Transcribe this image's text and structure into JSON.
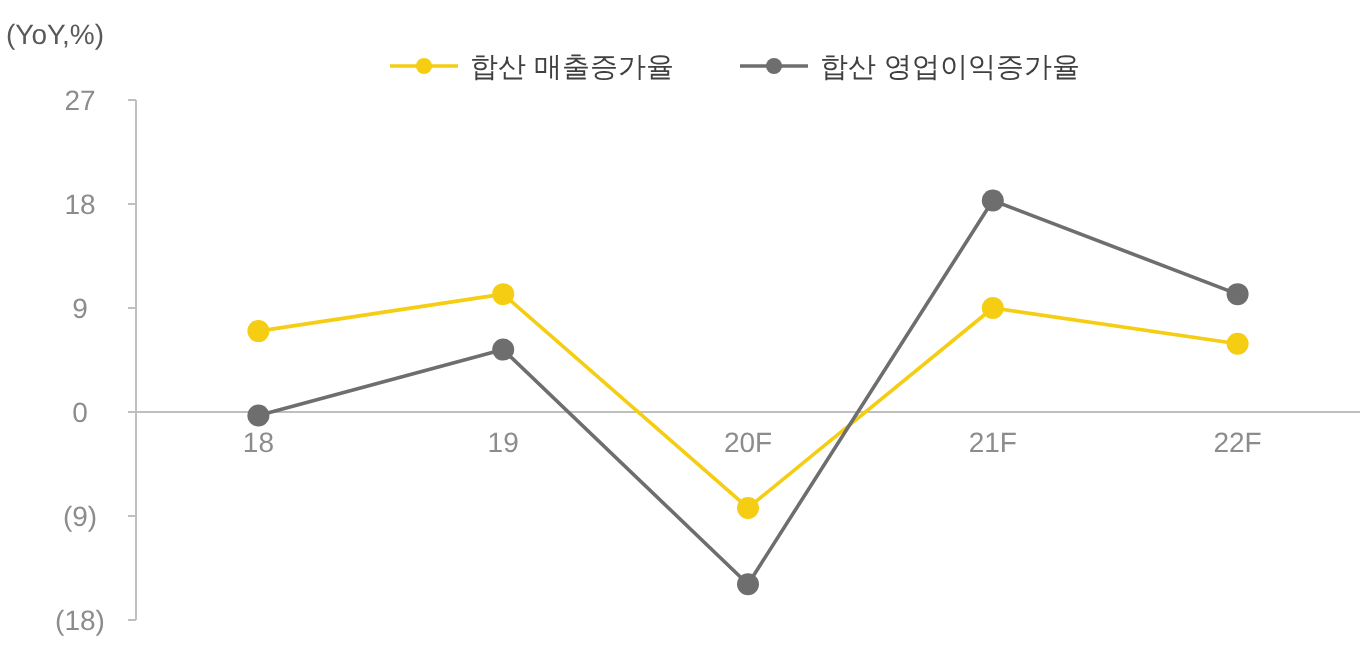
{
  "chart_data": {
    "type": "line",
    "ylabel": "(YoY,%)",
    "categories": [
      "18",
      "19",
      "20F",
      "21F",
      "22F"
    ],
    "series": [
      {
        "name": "합산 매출증가율",
        "color": "#f5cd12",
        "values": [
          7,
          10.2,
          -8.3,
          9,
          5.9
        ]
      },
      {
        "name": "합산 영업이익증가율",
        "color": "#6e6e6e",
        "values": [
          -0.3,
          5.4,
          -14.9,
          18.3,
          10.2
        ]
      }
    ],
    "ylim": [
      -18,
      27
    ],
    "yticks": [
      {
        "value": -18,
        "label": "(18)"
      },
      {
        "value": -9,
        "label": "(9)"
      },
      0,
      9,
      18,
      27
    ],
    "grid": false,
    "legend": "top",
    "marker": "circle",
    "line_style": "solid"
  }
}
